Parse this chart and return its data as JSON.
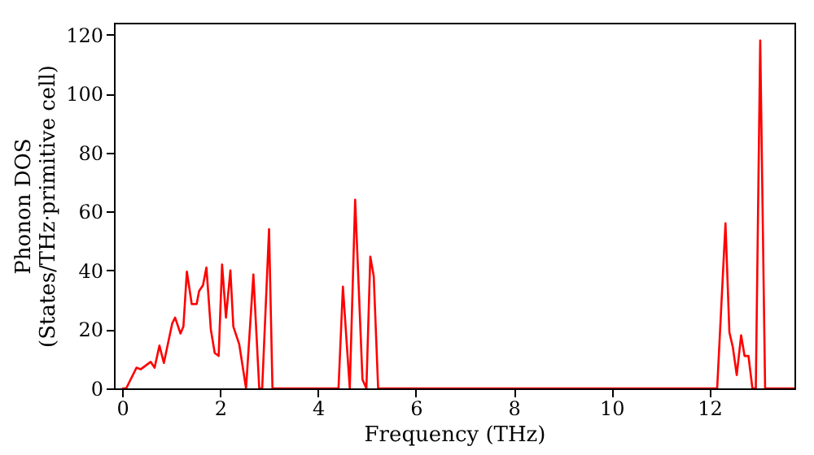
{
  "chart_data": {
    "type": "line",
    "xlabel": "Frequency (THz)",
    "ylabel": "Phonon DOS\n(States/THz·primitive cell)",
    "x": [
      0,
      0.08,
      0.29,
      0.38,
      0.58,
      0.66,
      0.76,
      0.85,
      1.02,
      1.08,
      1.19,
      1.25,
      1.32,
      1.42,
      1.52,
      1.57,
      1.65,
      1.72,
      1.81,
      1.89,
      1.97,
      2.04,
      2.12,
      2.21,
      2.27,
      2.39,
      2.53,
      2.68,
      2.8,
      2.86,
      3.0,
      3.07,
      4.42,
      4.51,
      4.65,
      4.76,
      4.91,
      4.99,
      5.07,
      5.14,
      5.23,
      12.16,
      12.33,
      12.41,
      12.48,
      12.56,
      12.65,
      12.72,
      12.8,
      12.88,
      12.95,
      13.04,
      13.14,
      13.74
    ],
    "series": [
      {
        "color": "#ff0000",
        "values": [
          0,
          0,
          7,
          6.5,
          9,
          7,
          14.5,
          8.6,
          22,
          24,
          18.6,
          21,
          39.6,
          28.6,
          28.6,
          33,
          35,
          41,
          20,
          12,
          11,
          42,
          24,
          40,
          21,
          15,
          0,
          38.6,
          0,
          0,
          54,
          0,
          0,
          34.5,
          0,
          64,
          3,
          0,
          44.7,
          38,
          0,
          0,
          56,
          19,
          14,
          4.5,
          18,
          11,
          11,
          0,
          0,
          118,
          0,
          0
        ]
      }
    ],
    "xlim": [
      -0.17,
      13.74
    ],
    "ylim": [
      0,
      124
    ],
    "xticks": [
      0,
      2,
      4,
      6,
      8,
      10,
      12
    ],
    "yticks": [
      0,
      20,
      40,
      60,
      80,
      100,
      120
    ],
    "grid": false,
    "legend": false,
    "line_style": "solid"
  }
}
